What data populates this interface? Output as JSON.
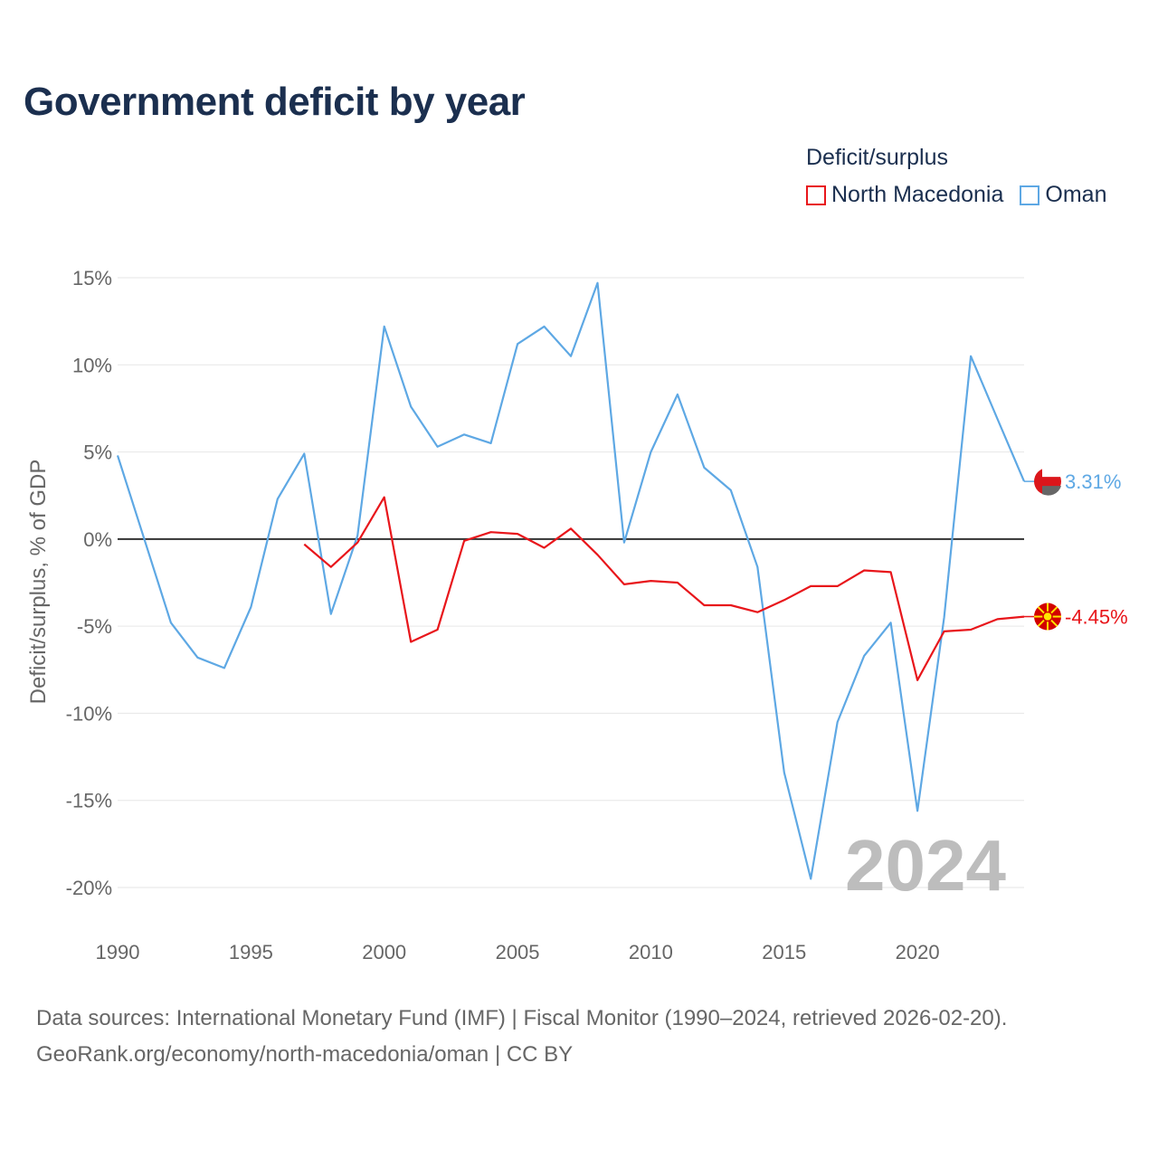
{
  "title": "Government deficit by year",
  "legend": {
    "title": "Deficit/surplus",
    "items": [
      {
        "label": "North Macedonia",
        "color": "#e8161b"
      },
      {
        "label": "Oman",
        "color": "#5ea8e4"
      }
    ]
  },
  "watermark_year": "2024",
  "sources": {
    "line1": "Data sources: International Monetary Fund (IMF) | Fiscal Monitor (1990–2024, retrieved 2026-02-20).",
    "line2": "GeoRank.org/economy/north-macedonia/oman | CC BY"
  },
  "chart_data": {
    "type": "line",
    "title": "Government deficit by year",
    "ylabel": "Deficit/surplus, % of GDP",
    "xlabel": "",
    "xlim": [
      1990,
      2024
    ],
    "ylim": [
      -22,
      16
    ],
    "yticks": [
      15,
      10,
      5,
      0,
      -5,
      -10,
      -15,
      -20
    ],
    "ytick_labels": [
      "15%",
      "10%",
      "5%",
      "0%",
      "-5%",
      "-10%",
      "-15%",
      "-20%"
    ],
    "xticks": [
      1990,
      1995,
      2000,
      2005,
      2010,
      2015,
      2020
    ],
    "xtick_labels": [
      "1990",
      "1995",
      "2000",
      "2005",
      "2010",
      "2015",
      "2020"
    ],
    "series": [
      {
        "name": "Oman",
        "color": "#5ea8e4",
        "end_label": "3.31%",
        "x": [
          1990,
          1991,
          1992,
          1993,
          1994,
          1995,
          1996,
          1997,
          1998,
          1999,
          2000,
          2001,
          2002,
          2003,
          2004,
          2005,
          2006,
          2007,
          2008,
          2009,
          2010,
          2011,
          2012,
          2013,
          2014,
          2015,
          2016,
          2017,
          2018,
          2019,
          2020,
          2021,
          2022,
          2023,
          2024
        ],
        "values": [
          4.8,
          0.0,
          -4.8,
          -6.8,
          -7.4,
          -3.9,
          2.3,
          4.9,
          -4.3,
          0.2,
          12.2,
          7.6,
          5.3,
          6.0,
          5.5,
          11.2,
          12.2,
          10.5,
          14.7,
          -0.2,
          5.0,
          8.3,
          4.1,
          2.8,
          -1.6,
          -13.4,
          -19.5,
          -10.5,
          -6.7,
          -4.8,
          -15.6,
          -4.5,
          10.5,
          6.9,
          3.31
        ]
      },
      {
        "name": "North Macedonia",
        "color": "#e8161b",
        "end_label": "-4.45%",
        "x": [
          1997,
          1998,
          1999,
          2000,
          2001,
          2002,
          2003,
          2004,
          2005,
          2006,
          2007,
          2008,
          2009,
          2010,
          2011,
          2012,
          2013,
          2014,
          2015,
          2016,
          2017,
          2018,
          2019,
          2020,
          2021,
          2022,
          2023,
          2024
        ],
        "values": [
          -0.3,
          -1.6,
          -0.2,
          2.4,
          -5.9,
          -5.2,
          -0.1,
          0.4,
          0.3,
          -0.5,
          0.6,
          -0.9,
          -2.6,
          -2.4,
          -2.5,
          -3.8,
          -3.8,
          -4.2,
          -3.5,
          -2.7,
          -2.7,
          -1.8,
          -1.9,
          -8.1,
          -5.3,
          -5.2,
          -4.6,
          -4.45
        ]
      }
    ]
  }
}
